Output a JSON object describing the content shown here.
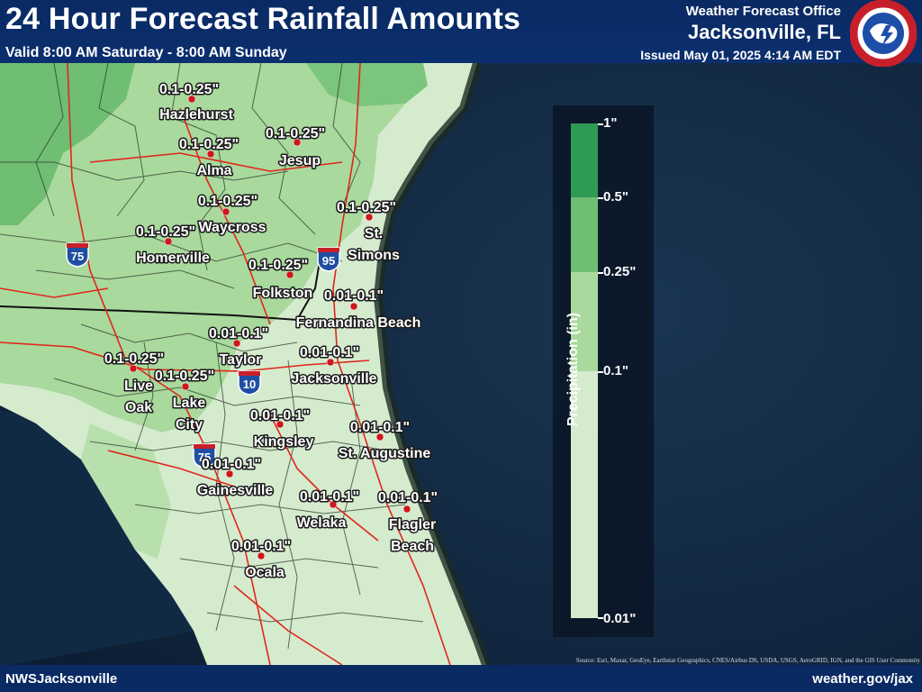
{
  "header": {
    "title": "24 Hour Forecast Rainfall Amounts",
    "valid": "Valid 8:00 AM Saturday - 8:00 AM Sunday",
    "office_line1": "Weather Forecast Office",
    "office_line2": "Jacksonville, FL",
    "issued": "Issued May 01, 2025 4:14 AM EDT",
    "logo_text": "NATIONAL WEATHER SERVICE"
  },
  "legend": {
    "title": "Precipitation (in)",
    "ticks": [
      "1\"",
      "0.5\"",
      "0.25\"",
      "0.1\"",
      "0.01\""
    ],
    "colors": {
      "range_0_5_1": "#2f9a54",
      "range_0_25_0_5": "#6fbe72",
      "range_0_1_0_25": "#a9d99d",
      "range_0_01_0_1": "#d5ebce"
    }
  },
  "highways": [
    "75",
    "95",
    "10",
    "75"
  ],
  "locations": [
    {
      "name": "Hazlehurst",
      "amount": "0.1-0.25\""
    },
    {
      "name": "Alma",
      "amount": "0.1-0.25\""
    },
    {
      "name": "Jesup",
      "amount": "0.1-0.25\""
    },
    {
      "name": "Waycross",
      "amount": "0.1-0.25\""
    },
    {
      "name": "St. Simons",
      "amount": "0.1-0.25\""
    },
    {
      "name": "Homerville",
      "amount": "0.1-0.25\""
    },
    {
      "name": "Folkston",
      "amount": "0.1-0.25\""
    },
    {
      "name": "Fernandina Beach",
      "amount": "0.01-0.1\""
    },
    {
      "name": "Taylor",
      "amount": "0.01-0.1\""
    },
    {
      "name": "Jacksonville",
      "amount": "0.01-0.1\""
    },
    {
      "name": "Live Oak",
      "amount": "0.1-0.25\""
    },
    {
      "name": "Lake City",
      "amount": "0.1-0.25\""
    },
    {
      "name": "Kingsley",
      "amount": "0.01-0.1\""
    },
    {
      "name": "St. Augustine",
      "amount": "0.01-0.1\""
    },
    {
      "name": "Gainesville",
      "amount": "0.01-0.1\""
    },
    {
      "name": "Welaka",
      "amount": "0.01-0.1\""
    },
    {
      "name": "Flagler Beach",
      "amount": "0.01-0.1\""
    },
    {
      "name": "Ocala",
      "amount": "0.01-0.1\""
    }
  ],
  "footer": {
    "left": "NWSJacksonville",
    "right": "weather.gov/jax",
    "attribution": "Source: Esri, Maxar, GeoEye, Earthstar Geographics, CNES/Airbus DS, USDA, USGS, AeroGRID, IGN, and the GIS User Community"
  }
}
